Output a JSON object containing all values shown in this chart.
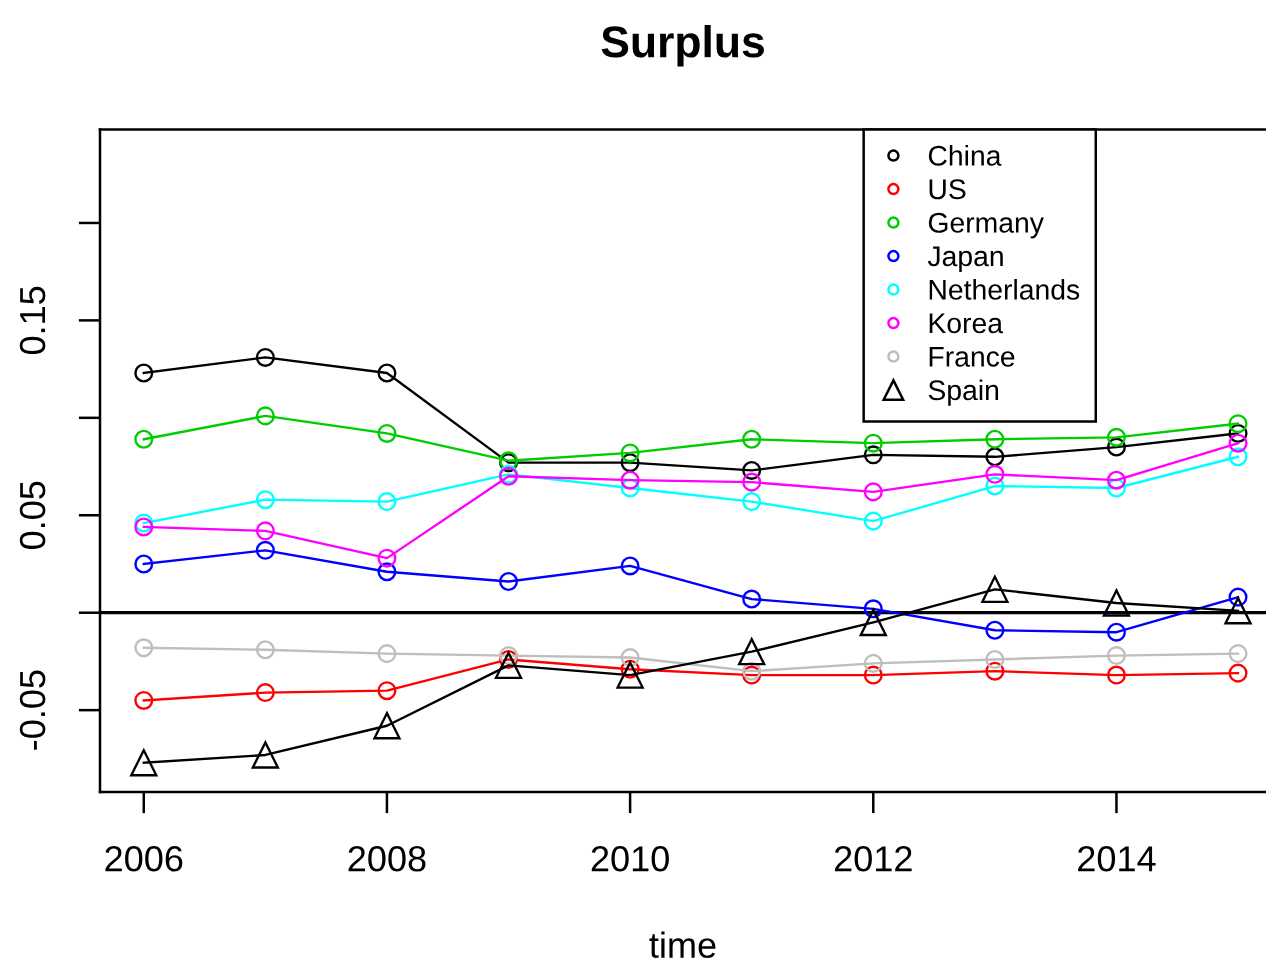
{
  "chart_data": {
    "type": "line",
    "title": "Surplus",
    "xlabel": "time",
    "x": [
      2006,
      2007,
      2008,
      2009,
      2010,
      2011,
      2012,
      2013,
      2014,
      2015
    ],
    "xlim": [
      2005.64,
      2015.23
    ],
    "xticks": [
      2006,
      2008,
      2010,
      2012,
      2014
    ],
    "ylim": [
      -0.092,
      0.248
    ],
    "yticks": [
      -0.05,
      {
        "value": 0,
        "label": null
      },
      0.05,
      {
        "value": 0.1,
        "label": null
      },
      0.15,
      {
        "value": 0.2,
        "label": null
      }
    ],
    "legend": "top right",
    "marker": "circle",
    "line_style": "solid",
    "ref_lines": [
      {
        "axis": "y",
        "value": 0,
        "color": "#000000",
        "line_style": "solid"
      }
    ],
    "series": [
      {
        "name": "China",
        "color": "#000000",
        "values": [
          0.123,
          0.131,
          0.123,
          0.077,
          0.077,
          0.073,
          0.081,
          0.08,
          0.085,
          0.092
        ]
      },
      {
        "name": "US",
        "color": "#ff0000",
        "values": [
          -0.045,
          -0.041,
          -0.04,
          -0.024,
          -0.029,
          -0.032,
          -0.032,
          -0.03,
          -0.032,
          -0.031
        ]
      },
      {
        "name": "Germany",
        "color": "#00cd00",
        "values": [
          0.089,
          0.101,
          0.092,
          0.078,
          0.082,
          0.089,
          0.087,
          0.089,
          0.09,
          0.097
        ]
      },
      {
        "name": "Japan",
        "color": "#0000ff",
        "values": [
          0.025,
          0.032,
          0.021,
          0.016,
          0.024,
          0.007,
          0.002,
          -0.009,
          -0.01,
          0.008
        ]
      },
      {
        "name": "Netherlands",
        "color": "#00ffff",
        "values": [
          0.046,
          0.058,
          0.057,
          0.071,
          0.064,
          0.057,
          0.047,
          0.065,
          0.064,
          0.08
        ]
      },
      {
        "name": "Korea",
        "color": "#ff00ff",
        "values": [
          0.044,
          0.042,
          0.028,
          0.07,
          0.068,
          0.067,
          0.062,
          0.071,
          0.068,
          0.087
        ]
      },
      {
        "name": "France",
        "color": "#bebebe",
        "values": [
          -0.018,
          -0.019,
          -0.021,
          -0.022,
          -0.023,
          -0.03,
          -0.026,
          -0.024,
          -0.022,
          -0.021
        ]
      },
      {
        "name": "Spain",
        "color": "#000000",
        "marker": "triangle",
        "values": [
          -0.077,
          -0.073,
          -0.058,
          -0.027,
          -0.032,
          -0.02,
          -0.005,
          0.012,
          0.005,
          0.001
        ]
      }
    ]
  }
}
